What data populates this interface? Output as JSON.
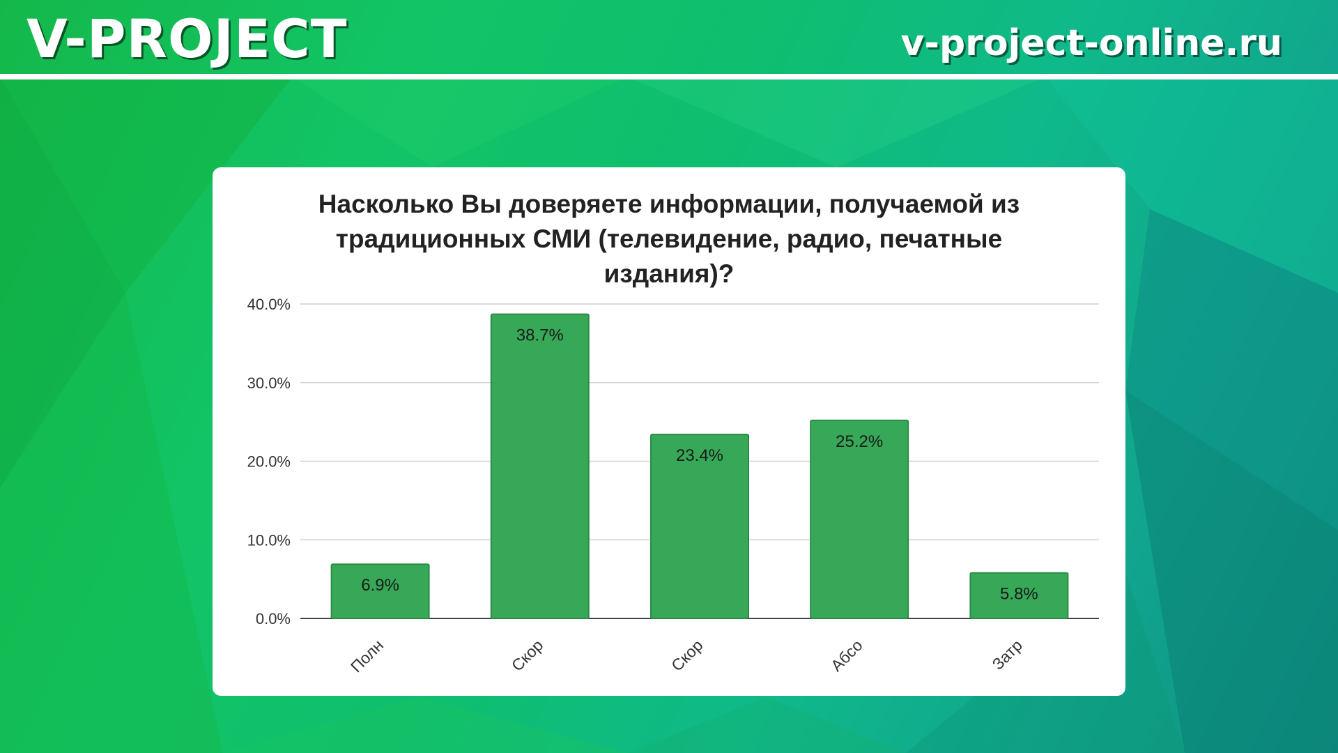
{
  "brand": {
    "logo": "V-PROJECT",
    "site": "v-project-online.ru"
  },
  "chart_data": {
    "type": "bar",
    "title": "Насколько Вы доверяете информации, получаемой из традиционных СМИ (телевидение, радио, печатные издания)?",
    "categories": [
      "Полн",
      "Скор",
      "Скор",
      "Абсо",
      "Затр"
    ],
    "values": [
      6.9,
      38.7,
      23.4,
      25.2,
      5.8
    ],
    "value_labels": [
      "6.9%",
      "38.7%",
      "23.4%",
      "25.2%",
      "5.8%"
    ],
    "y_ticks": [
      "0.0%",
      "10.0%",
      "20.0%",
      "30.0%",
      "40.0%"
    ],
    "ylim": [
      0,
      40
    ],
    "grid": true,
    "bar_color": "#37a857",
    "bar_border_color": "#2b8a45"
  }
}
